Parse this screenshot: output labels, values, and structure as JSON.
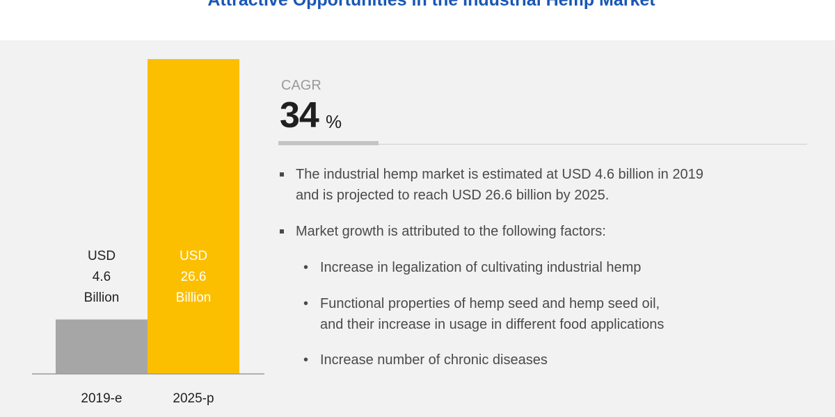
{
  "title": "Attractive Opportunities in the Industrial Hemp Market",
  "chart_data": {
    "type": "bar",
    "categories": [
      "2019-e",
      "2025-p"
    ],
    "values": [
      4.6,
      26.6
    ],
    "data_labels": [
      [
        "USD",
        "4.6",
        "Billion"
      ],
      [
        "USD",
        "26.6",
        "Billion"
      ]
    ],
    "colors": [
      "#a6a6a6",
      "#fcbf00"
    ],
    "label_colors": [
      "#222222",
      "#ffffff"
    ],
    "ylim": [
      0,
      26.6
    ],
    "grid": false,
    "xlabel": "",
    "ylabel": ""
  },
  "cagr": {
    "label": "CAGR",
    "value": "34",
    "unit": "%"
  },
  "bullets": [
    {
      "lines": [
        "The industrial hemp market is estimated at USD 4.6 billion in 2019",
        "and is projected to reach USD 26.6 billion by 2025."
      ]
    },
    {
      "lines": [
        "Market growth is attributed to the following factors:"
      ]
    }
  ],
  "sub_bullets": [
    {
      "lines": [
        "Increase in legalization of cultivating industrial hemp"
      ]
    },
    {
      "lines": [
        "Functional properties of hemp seed and hemp seed oil,",
        "and their increase in usage in different food applications"
      ]
    },
    {
      "lines": [
        "Increase number of chronic diseases"
      ]
    }
  ],
  "sub_bullet_glyph": "•"
}
